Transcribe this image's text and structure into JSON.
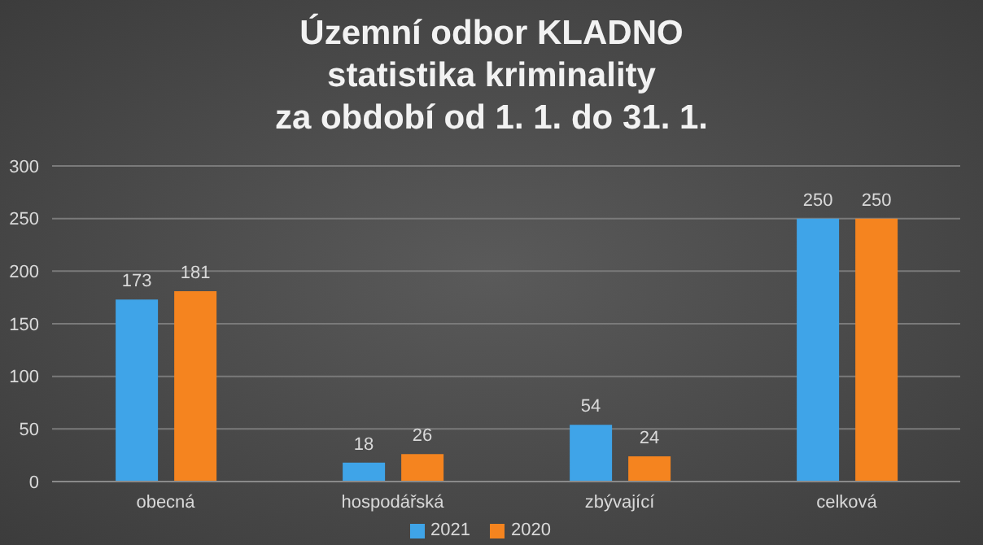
{
  "chart_data": {
    "type": "bar",
    "title": "Územní odbor KLADNO\nstatistika kriminality\nza období od 1. 1. do 31. 1.",
    "categories": [
      "obecná",
      "hospodářská",
      "zbývající",
      "celková"
    ],
    "series": [
      {
        "name": "2021",
        "color": "#3fa4e8",
        "values": [
          173,
          18,
          54,
          250
        ]
      },
      {
        "name": "2020",
        "color": "#f5841f",
        "values": [
          181,
          26,
          24,
          250
        ]
      }
    ],
    "ylim": [
      0,
      300
    ],
    "yticks": [
      0,
      50,
      100,
      150,
      200,
      250,
      300
    ],
    "grid": "y",
    "legend": "bottom",
    "data_labels": true
  }
}
